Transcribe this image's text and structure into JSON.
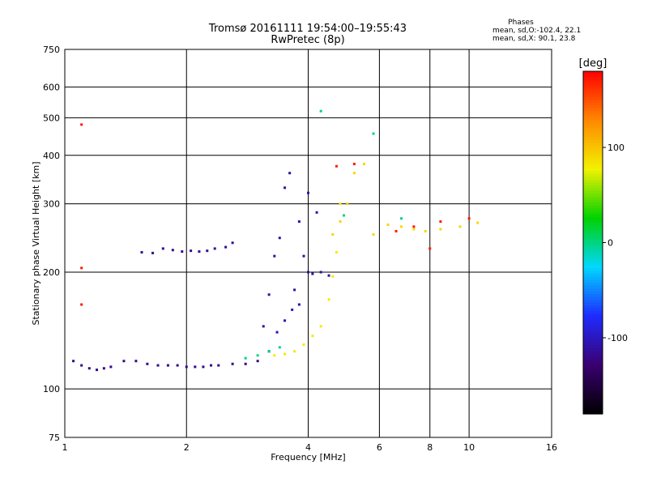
{
  "header": {
    "title_line1": "Tromsø 20161111 19:54:00–19:55:43",
    "title_line2": "RwPretec (8p)",
    "stats_title": "Phases",
    "stats_line1": "mean, sd,O:-102.4, 22.1",
    "stats_line2": "mean, sd,X: 90.1, 23.8"
  },
  "chart_data": {
    "type": "scatter",
    "title": "Tromsø 20161111 19:54:00–19:55:43",
    "subtitle": "RwPretec (8p)",
    "xlabel": "Frequency [MHz]",
    "ylabel": "Stationary phase Virtual Height [km]",
    "x_scale": "log",
    "y_scale": "log",
    "xlim": [
      1,
      16
    ],
    "ylim": [
      75,
      750
    ],
    "x_ticks": [
      1,
      2,
      4,
      6,
      8,
      10,
      16
    ],
    "y_ticks": [
      75,
      100,
      200,
      300,
      400,
      500,
      600,
      750
    ],
    "grid": true,
    "colorbar": {
      "label": "[deg]",
      "range": [
        -180,
        180
      ],
      "ticks": [
        100,
        0,
        -100
      ],
      "colormap": "rainbow"
    },
    "color_stops": [
      "#000000",
      "#3a0070",
      "#1e2bff",
      "#00d8ff",
      "#00d200",
      "#f2f200",
      "#ff8800",
      "#ff0000"
    ],
    "series": [
      {
        "phase": -120,
        "x": [
          1.05,
          1.1,
          1.15,
          1.2,
          1.25,
          1.3,
          1.4,
          1.5,
          1.6,
          1.7,
          1.8,
          1.9,
          2.0,
          2.1,
          2.2,
          2.3,
          2.4,
          2.6,
          2.8,
          3.0
        ],
        "y": [
          118,
          115,
          113,
          112,
          113,
          114,
          118,
          118,
          116,
          115,
          115,
          115,
          114,
          114,
          114,
          115,
          115,
          116,
          116,
          118
        ]
      },
      {
        "phase": -115,
        "x": [
          1.55,
          1.65,
          1.75,
          1.85,
          1.95,
          2.05,
          2.15,
          2.25,
          2.35,
          2.5,
          2.6
        ],
        "y": [
          225,
          224,
          230,
          228,
          226,
          227,
          226,
          227,
          230,
          232,
          238
        ]
      },
      {
        "phase": -110,
        "x": [
          3.1,
          3.2,
          3.3,
          3.4,
          3.5,
          3.6,
          3.7,
          3.8,
          3.9,
          4.0,
          4.1,
          4.3,
          4.5
        ],
        "y": [
          145,
          175,
          220,
          245,
          330,
          360,
          180,
          165,
          220,
          200,
          198,
          200,
          196
        ]
      },
      {
        "phase": -105,
        "x": [
          3.2,
          3.35,
          3.5,
          3.65,
          3.8,
          4.0,
          4.2
        ],
        "y": [
          125,
          140,
          150,
          160,
          270,
          320,
          285
        ]
      },
      {
        "phase": 0,
        "x": [
          2.8,
          3.0,
          3.2,
          3.4,
          4.3,
          4.9,
          5.8,
          6.8
        ],
        "y": [
          120,
          122,
          125,
          128,
          520,
          280,
          455,
          275
        ]
      },
      {
        "phase": 80,
        "x": [
          3.3,
          3.5,
          3.7,
          3.9,
          4.1,
          4.3,
          4.5,
          4.6,
          4.7,
          4.8
        ],
        "y": [
          122,
          123,
          125,
          130,
          137,
          145,
          170,
          195,
          225,
          300
        ]
      },
      {
        "phase": 90,
        "x": [
          4.6,
          4.8,
          5.0,
          5.2,
          5.5,
          5.8,
          6.3,
          6.8,
          7.3,
          7.8,
          8.5,
          9.5,
          10.5
        ],
        "y": [
          250,
          270,
          300,
          360,
          380,
          250,
          265,
          262,
          258,
          255,
          258,
          262,
          268
        ]
      },
      {
        "phase": 170,
        "x": [
          1.1,
          1.1,
          1.1,
          4.7,
          5.2,
          6.6,
          7.3,
          8.0,
          8.5,
          10.0
        ],
        "y": [
          165,
          205,
          480,
          375,
          380,
          255,
          262,
          230,
          270,
          275
        ]
      }
    ]
  }
}
